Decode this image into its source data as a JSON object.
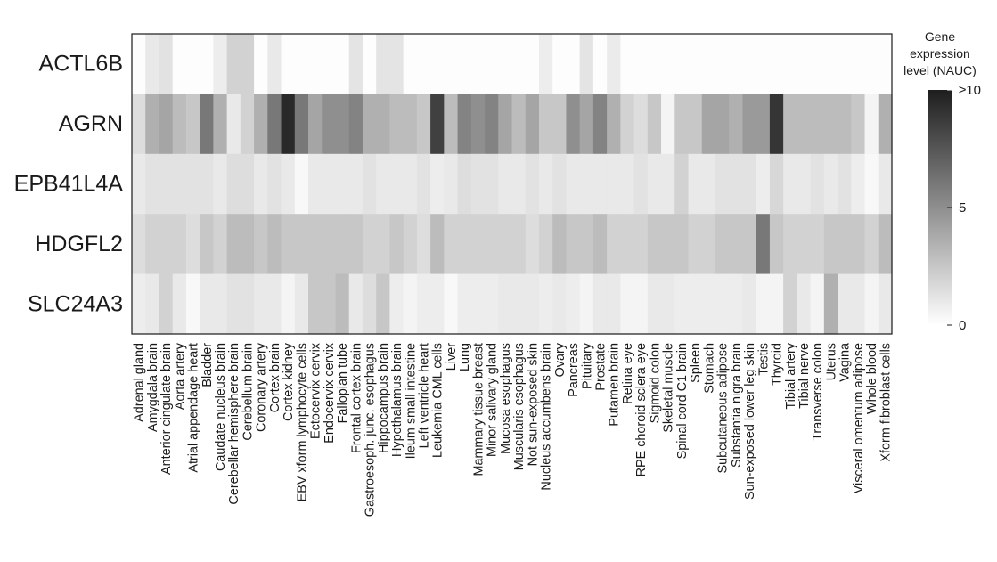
{
  "chart_data": {
    "type": "heatmap",
    "rows": [
      "ACTL6B",
      "AGRN",
      "EPB41L4A",
      "HDGFL2",
      "SLC24A3"
    ],
    "columns": [
      "Adrenal gland",
      "Amygdala brain",
      "Anterior cingulate brain",
      "Aorta artery",
      "Atrial appendage heart",
      "Bladder",
      "Caudate nucleus brain",
      "Cerebellar hemisphere brain",
      "Cerebellum brain",
      "Coronary artery",
      "Cortex brain",
      "Cortex kidney",
      "EBV xform lymphocyte cells",
      "Ectocervix cervix",
      "Endocervix cervix",
      "Fallopian tube",
      "Frontal cortex brain",
      "Gastroesoph. junc. esophagus",
      "Hippocampus brain",
      "Hypothalamus brain",
      "Ileum small intestine",
      "Left ventricle heart",
      "Leukemia CML cells",
      "Liver",
      "Lung",
      "Mammary tissue breast",
      "Minor salivary gland",
      "Mucosa esophagus",
      "Muscularis esophagus",
      "Not sun-exposed skin",
      "Nucleus accumbens brain",
      "Ovary",
      "Pancreas",
      "Pituitary",
      "Prostate",
      "Putamen brain",
      "Retina eye",
      "RPE choroid sclera eye",
      "Sigmoid colon",
      "Skeletal muscle",
      "Spinal cord C1 brain",
      "Spleen",
      "Stomach",
      "Subcutaneous adipose",
      "Substantia nigra brain",
      "Sun-exposed lower leg skin",
      "Testis",
      "Thyroid",
      "Tibial artery",
      "Tibial nerve",
      "Transverse colon",
      "Uterus",
      "Vagina",
      "Visceral omentum adipose",
      "Whole blood",
      "Xform fibroblast cells"
    ],
    "values": [
      [
        0.1,
        1.0,
        1.3,
        0.1,
        0.1,
        0.1,
        0.8,
        2.0,
        2.0,
        0.1,
        1.0,
        0.1,
        0.1,
        0.1,
        0.1,
        0.1,
        1.2,
        0.1,
        1.2,
        1.2,
        0.1,
        0.1,
        0.1,
        0.1,
        0.1,
        0.1,
        0.1,
        0.1,
        0.1,
        0.1,
        0.8,
        0.1,
        0.1,
        1.2,
        0.1,
        0.9,
        0.1,
        0.1,
        0.1,
        0.1,
        0.1,
        0.1,
        0.1,
        0.1,
        0.1,
        0.1,
        0.1,
        0.1,
        0.1,
        0.1,
        0.1,
        0.1,
        0.1,
        0.1,
        0.1,
        0.1
      ],
      [
        1.5,
        3.5,
        4.0,
        3.0,
        2.5,
        6.0,
        3.5,
        1.0,
        2.0,
        3.5,
        6.0,
        9.5,
        6.0,
        4.0,
        5.0,
        5.0,
        5.5,
        3.5,
        3.5,
        3.0,
        3.0,
        2.5,
        8.5,
        3.0,
        5.5,
        5.0,
        5.5,
        4.0,
        3.0,
        4.0,
        2.5,
        2.5,
        5.0,
        4.0,
        5.5,
        3.5,
        2.0,
        1.5,
        2.5,
        0.5,
        2.5,
        2.5,
        4.0,
        4.0,
        3.5,
        4.5,
        4.5,
        9.0,
        3.0,
        3.0,
        3.0,
        3.0,
        3.0,
        2.5,
        0.5,
        3.5
      ],
      [
        1.0,
        1.3,
        1.3,
        1.3,
        1.3,
        1.3,
        1.0,
        1.5,
        1.5,
        1.0,
        1.3,
        1.0,
        0.3,
        1.0,
        1.0,
        1.0,
        1.0,
        1.3,
        1.0,
        1.0,
        1.0,
        1.3,
        0.8,
        1.0,
        1.5,
        1.3,
        1.3,
        1.0,
        1.0,
        1.3,
        1.0,
        1.3,
        1.0,
        1.0,
        1.0,
        1.0,
        1.0,
        1.3,
        1.0,
        1.0,
        2.0,
        1.0,
        1.0,
        1.3,
        1.3,
        1.3,
        0.8,
        1.8,
        1.0,
        1.0,
        1.3,
        1.0,
        1.3,
        0.8,
        0.3,
        1.0
      ],
      [
        1.5,
        2.0,
        2.0,
        2.0,
        1.5,
        2.5,
        2.0,
        3.0,
        3.0,
        2.5,
        3.0,
        2.5,
        2.5,
        2.5,
        2.5,
        2.5,
        2.5,
        2.0,
        2.0,
        2.5,
        2.0,
        1.5,
        3.0,
        2.0,
        2.0,
        2.0,
        2.0,
        2.0,
        2.0,
        1.5,
        2.0,
        3.0,
        2.5,
        2.5,
        3.0,
        2.0,
        2.0,
        2.0,
        2.5,
        2.5,
        2.5,
        2.0,
        2.0,
        2.5,
        2.5,
        2.5,
        6.0,
        2.5,
        2.0,
        2.0,
        2.0,
        2.5,
        2.5,
        2.5,
        2.0,
        3.0
      ],
      [
        0.8,
        1.0,
        2.0,
        1.0,
        0.3,
        1.0,
        1.0,
        1.3,
        1.3,
        1.0,
        1.0,
        0.5,
        1.0,
        2.5,
        2.5,
        3.0,
        1.0,
        1.5,
        2.5,
        0.8,
        0.5,
        0.8,
        0.8,
        0.3,
        0.8,
        0.8,
        0.8,
        1.0,
        1.0,
        1.0,
        0.8,
        1.0,
        0.8,
        0.5,
        1.0,
        1.0,
        0.5,
        0.5,
        1.0,
        1.0,
        0.8,
        0.8,
        0.8,
        0.8,
        0.8,
        1.0,
        0.5,
        0.5,
        2.0,
        1.0,
        0.5,
        3.5,
        1.0,
        1.0,
        0.5,
        1.0
      ]
    ],
    "colorbar": {
      "title_lines": [
        "Gene",
        "expression",
        "level (NAUC)"
      ],
      "ticks": [
        {
          "value": 10,
          "label": "≥10"
        },
        {
          "value": 5,
          "label": "5"
        },
        {
          "value": 0,
          "label": "0"
        }
      ],
      "range": [
        0,
        10
      ],
      "color_low": "#ffffff",
      "color_high": "#1e1e1e"
    }
  }
}
